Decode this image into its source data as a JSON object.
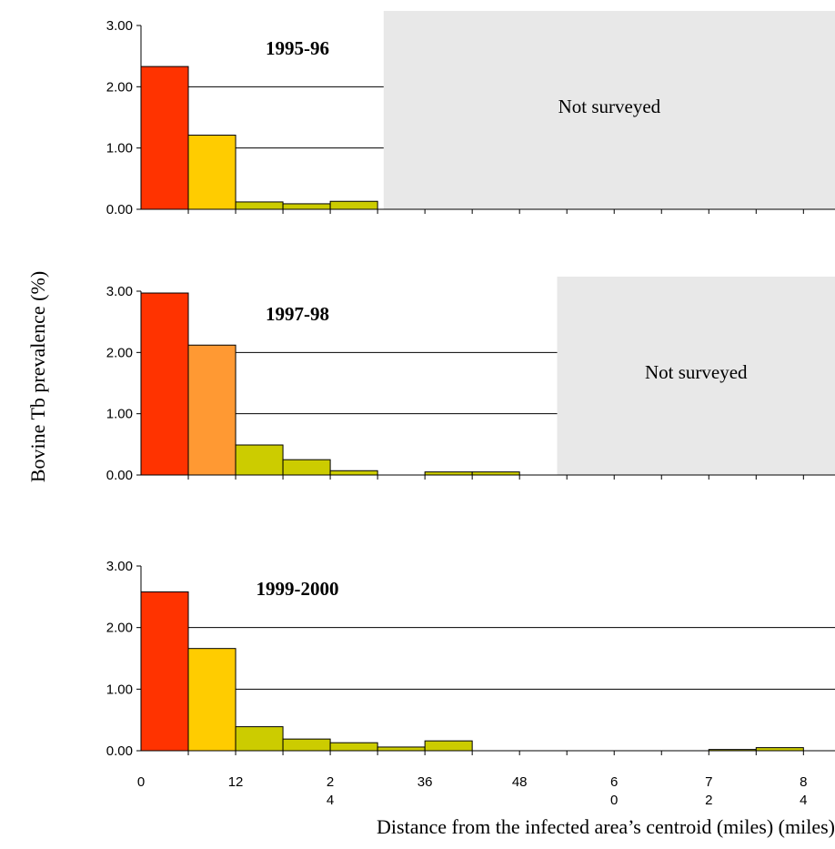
{
  "chart_data": {
    "type": "bar",
    "xlabel": "Distance from the infected area’s centroid (miles)  (miles)",
    "ylabel": "Bovine Tb prevalence  (%)",
    "x_tick_labels": [
      {
        "at": 0,
        "lines": [
          "0"
        ]
      },
      {
        "at": 12,
        "lines": [
          "12"
        ]
      },
      {
        "at": 24,
        "lines": [
          "2",
          "4"
        ]
      },
      {
        "at": 36,
        "lines": [
          "36"
        ]
      },
      {
        "at": 48,
        "lines": [
          "48"
        ]
      },
      {
        "at": 60,
        "lines": [
          "6",
          "0"
        ]
      },
      {
        "at": 72,
        "lines": [
          "7",
          "2"
        ]
      },
      {
        "at": 84,
        "lines": [
          "8",
          "4"
        ]
      }
    ],
    "bin_width": 6,
    "xlim": [
      0,
      88
    ],
    "panels": [
      {
        "title": "1995-96",
        "ylim": [
          0,
          3
        ],
        "y_ticks": [
          "0.00",
          "1.00",
          "2.00",
          "3.00"
        ],
        "not_surveyed_label": "Not surveyed",
        "not_surveyed_from": 31,
        "bins": [
          {
            "start": 0,
            "value": 2.33,
            "color": "#FF3300"
          },
          {
            "start": 6,
            "value": 1.21,
            "color": "#FFCC00"
          },
          {
            "start": 12,
            "value": 0.12,
            "color": "#CCCC00"
          },
          {
            "start": 18,
            "value": 0.09,
            "color": "#CCCC00"
          },
          {
            "start": 24,
            "value": 0.13,
            "color": "#CCCC00"
          }
        ]
      },
      {
        "title": "1997-98",
        "ylim": [
          0,
          3
        ],
        "y_ticks": [
          "0.00",
          "1.00",
          "2.00",
          "3.00"
        ],
        "not_surveyed_label": "Not surveyed",
        "not_surveyed_from": 53,
        "bins": [
          {
            "start": 0,
            "value": 2.97,
            "color": "#FF3300"
          },
          {
            "start": 6,
            "value": 2.12,
            "color": "#FF9933"
          },
          {
            "start": 12,
            "value": 0.49,
            "color": "#CCCC00"
          },
          {
            "start": 18,
            "value": 0.25,
            "color": "#CCCC00"
          },
          {
            "start": 24,
            "value": 0.07,
            "color": "#CCCC00"
          },
          {
            "start": 36,
            "value": 0.05,
            "color": "#CCCC00"
          },
          {
            "start": 42,
            "value": 0.05,
            "color": "#CCCC00"
          }
        ]
      },
      {
        "title": "1999-2000",
        "ylim": [
          0,
          3
        ],
        "y_ticks": [
          "0.00",
          "1.00",
          "2.00",
          "3.00"
        ],
        "bins": [
          {
            "start": 0,
            "value": 2.58,
            "color": "#FF3300"
          },
          {
            "start": 6,
            "value": 1.66,
            "color": "#FFCC00"
          },
          {
            "start": 12,
            "value": 0.39,
            "color": "#CCCC00"
          },
          {
            "start": 18,
            "value": 0.19,
            "color": "#CCCC00"
          },
          {
            "start": 24,
            "value": 0.13,
            "color": "#CCCC00"
          },
          {
            "start": 30,
            "value": 0.06,
            "color": "#CCCC00"
          },
          {
            "start": 36,
            "value": 0.16,
            "color": "#CCCC00"
          },
          {
            "start": 72,
            "value": 0.02,
            "color": "#CCCC00"
          },
          {
            "start": 78,
            "value": 0.05,
            "color": "#CCCC00"
          }
        ]
      }
    ]
  }
}
